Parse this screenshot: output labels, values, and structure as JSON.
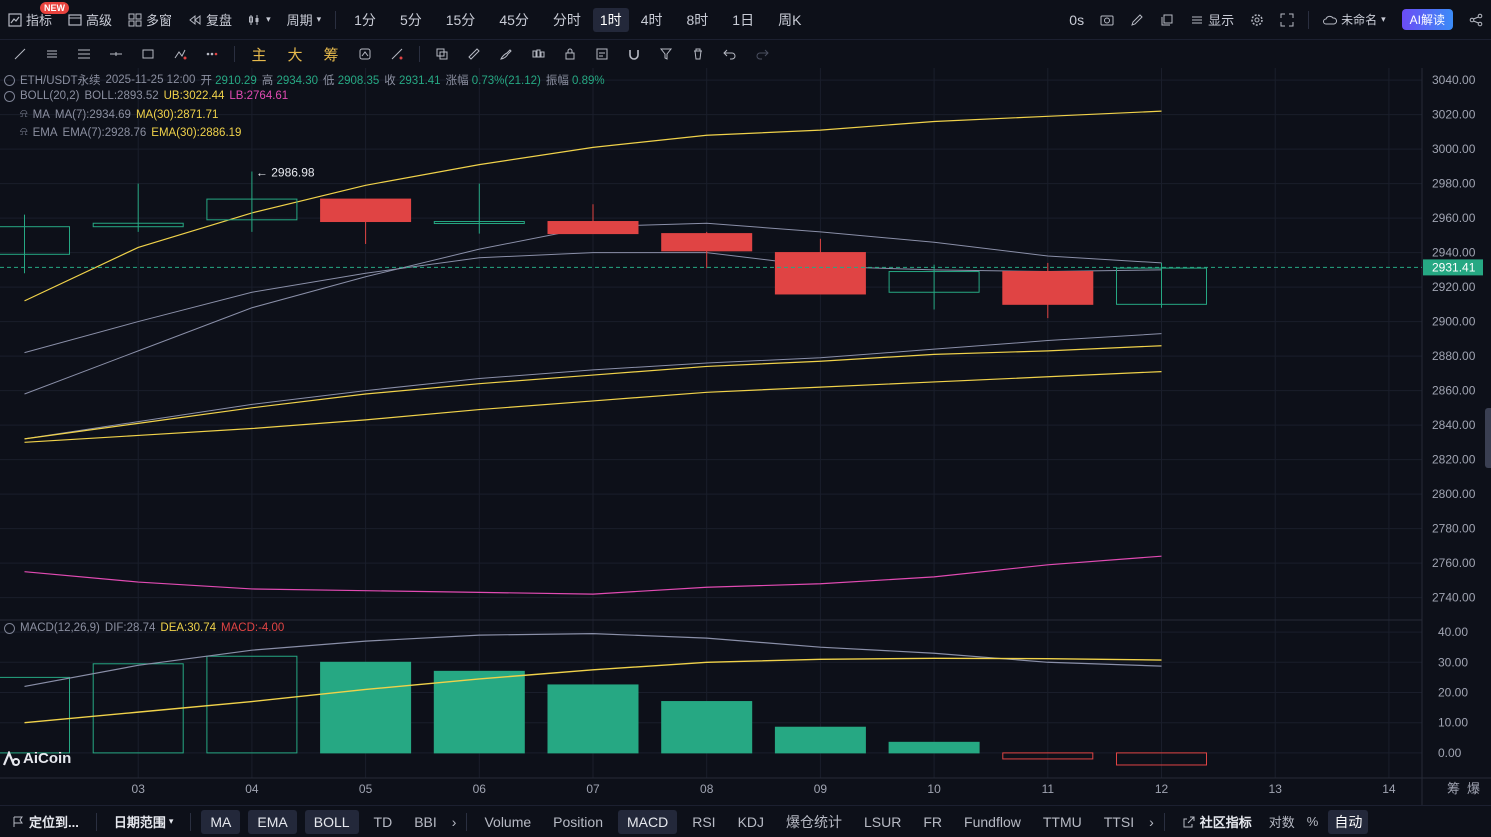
{
  "topbar": {
    "indicators": "指标",
    "new_badge": "NEW",
    "advanced": "高级",
    "multi_window": "多窗",
    "replay": "复盘",
    "period": "周期",
    "periods": [
      "1分",
      "5分",
      "15分",
      "45分",
      "分时",
      "1时",
      "4时",
      "8时",
      "1日",
      "周K"
    ],
    "active_period": "1时",
    "countdown": "0s",
    "display": "显示",
    "unnamed": "未命名",
    "ai_read": "AI解读"
  },
  "toolbar2": {
    "main": "主",
    "big": "大",
    "chips": "筹"
  },
  "legend": {
    "pair": "ETH/USDT永续",
    "datetime": "2025-11-25 12:00",
    "open_label": "开",
    "open": "2910.29",
    "high_label": "高",
    "high": "2934.30",
    "low_label": "低",
    "low": "2908.35",
    "close_label": "收",
    "close": "2931.41",
    "change_label": "涨幅",
    "change": "0.73%(21.12)",
    "amp_label": "振幅",
    "amp": "0.89%",
    "boll_name": "BOLL(20,2)",
    "boll": "BOLL:2893.52",
    "boll_ub": "UB:3022.44",
    "boll_lb": "LB:2764.61",
    "ma_name": "MA",
    "ma7": "MA(7):2934.69",
    "ma30": "MA(30):2871.71",
    "ema_name": "EMA",
    "ema7": "EMA(7):2928.76",
    "ema30": "EMA(30):2886.19",
    "macd_name": "MACD(12,26,9)",
    "dif": "DIF:28.74",
    "dea": "DEA:30.74",
    "macd": "MACD:-4.00"
  },
  "high_marker": "← 2986.98",
  "current_price": "2931.41",
  "colors": {
    "up": "#26a883",
    "down": "#e04444",
    "ub": "#f0d24a",
    "lb": "#e14bb3",
    "mid": "#8a90b0",
    "grid": "#1a1e2b"
  },
  "chart_data": {
    "type": "candlestick",
    "x_labels": [
      "03",
      "04",
      "05",
      "06",
      "07",
      "08",
      "09",
      "10",
      "11",
      "12",
      "13",
      "14"
    ],
    "price_ticks": [
      3040,
      3020,
      3000,
      2980,
      2960,
      2940,
      2920,
      2900,
      2880,
      2860,
      2840,
      2820,
      2800,
      2780,
      2760,
      2740
    ],
    "price_tick_labels": [
      "3040.00",
      "3020.00",
      "3000.00",
      "2980.00",
      "2960.00",
      "2940.00",
      "2920.00",
      "2900.00",
      "2880.00",
      "2860.00",
      "2840.00",
      "2820.00",
      "2800.00",
      "2780.00",
      "2760.00",
      "2740.00"
    ],
    "ylim": [
      2727,
      3047
    ],
    "candles": [
      {
        "x": "02",
        "o": 2939,
        "h": 2962,
        "l": 2928,
        "c": 2955
      },
      {
        "x": "03",
        "o": 2955,
        "h": 2980,
        "l": 2952,
        "c": 2957
      },
      {
        "x": "04",
        "o": 2959,
        "h": 2987,
        "l": 2952,
        "c": 2971
      },
      {
        "x": "05",
        "o": 2971,
        "h": 2971,
        "l": 2945,
        "c": 2958
      },
      {
        "x": "06",
        "o": 2957,
        "h": 2980,
        "l": 2951,
        "c": 2958
      },
      {
        "x": "07",
        "o": 2958,
        "h": 2968,
        "l": 2952,
        "c": 2951
      },
      {
        "x": "08",
        "o": 2951,
        "h": 2952,
        "l": 2931,
        "c": 2941
      },
      {
        "x": "09",
        "o": 2940,
        "h": 2948,
        "l": 2916,
        "c": 2916
      },
      {
        "x": "10",
        "o": 2917,
        "h": 2933,
        "l": 2907,
        "c": 2929
      },
      {
        "x": "11",
        "o": 2929,
        "h": 2934,
        "l": 2902,
        "c": 2910
      },
      {
        "x": "12",
        "o": 2910,
        "h": 2934,
        "l": 2908,
        "c": 2931
      }
    ],
    "ub": [
      2920,
      2943,
      2963,
      2979,
      2991,
      3001,
      3008,
      3011,
      3016,
      3019,
      3022
    ],
    "lb": [
      2755,
      2749,
      2745,
      2744,
      2743,
      2742,
      2746,
      2748,
      2752,
      2759,
      2764
    ],
    "line_a": [
      2882,
      2900,
      2917,
      2928,
      2937,
      2940,
      2940,
      2932,
      2930,
      2929,
      2930
    ],
    "line_b": [
      2858,
      2883,
      2908,
      2926,
      2942,
      2955,
      2957,
      2952,
      2946,
      2938,
      2934
    ],
    "line_c": [
      2832,
      2842,
      2852,
      2860,
      2867,
      2872,
      2876,
      2879,
      2884,
      2889,
      2893
    ],
    "line_d": [
      2832,
      2841,
      2850,
      2858,
      2864,
      2869,
      2874,
      2877,
      2881,
      2883,
      2886
    ],
    "line_e": [
      2830,
      2834,
      2838,
      2843,
      2849,
      2854,
      2859,
      2862,
      2865,
      2868,
      2871
    ],
    "macd_ticks": [
      40,
      30,
      20,
      10,
      0
    ],
    "macd_tick_labels": [
      "40.00",
      "30.00",
      "20.00",
      "10.00",
      "0.00"
    ],
    "macd_ylim": [
      -5,
      44
    ],
    "macd_hist": [
      25,
      29.5,
      32,
      30,
      27,
      22.5,
      17,
      8.5,
      3.5,
      -2,
      -4
    ],
    "dif": [
      22,
      29,
      34,
      37,
      39,
      39.5,
      38,
      35,
      33,
      30,
      28.74
    ],
    "dea": [
      10,
      13.5,
      17,
      21,
      24.5,
      27.5,
      30,
      31,
      31.3,
      31.2,
      30.74
    ]
  },
  "bottombar": {
    "locate": "定位到...",
    "date_range": "日期范围",
    "main_inds": [
      "MA",
      "EMA",
      "BOLL",
      "TD",
      "BBI"
    ],
    "sub_inds": [
      "Volume",
      "Position",
      "MACD",
      "RSI",
      "KDJ",
      "爆仓统计",
      "LSUR",
      "FR",
      "Fundflow",
      "TTMU",
      "TTSI"
    ],
    "community": "社区指标",
    "log": "对数",
    "percent": "%",
    "auto": "自动"
  },
  "axis_right": {
    "chips": "筹",
    "burst": "爆"
  },
  "brand": "AiCoin"
}
